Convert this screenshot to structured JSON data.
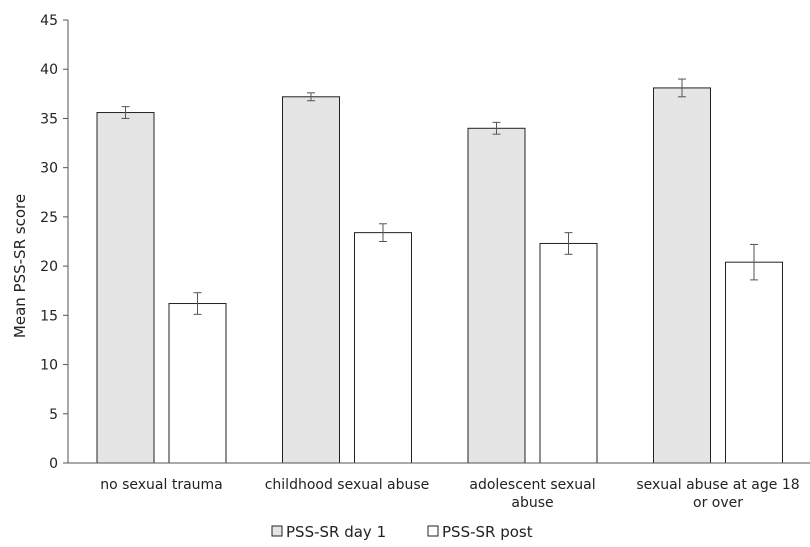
{
  "chart_data": {
    "type": "bar",
    "title": "",
    "xlabel": "",
    "ylabel": "Mean PSS-SR score",
    "ylim": [
      0,
      45
    ],
    "yticks": [
      0,
      5,
      10,
      15,
      20,
      25,
      30,
      35,
      40,
      45
    ],
    "categories": [
      [
        "no sexual trauma"
      ],
      [
        "childhood sexual abuse"
      ],
      [
        "adolescent sexual",
        "abuse"
      ],
      [
        "sexual abuse at age 18",
        "or over"
      ]
    ],
    "series": [
      {
        "name": "PSS-SR day 1",
        "color": "#e5e5e5",
        "values": [
          35.6,
          37.2,
          34.0,
          38.1
        ],
        "error": [
          0.6,
          0.4,
          0.6,
          0.9
        ]
      },
      {
        "name": "PSS-SR post",
        "color": "#ffffff",
        "values": [
          16.2,
          23.4,
          22.3,
          20.4
        ],
        "error": [
          1.1,
          0.9,
          1.1,
          1.8
        ]
      }
    ],
    "legend_position": "bottom",
    "grid": false
  }
}
